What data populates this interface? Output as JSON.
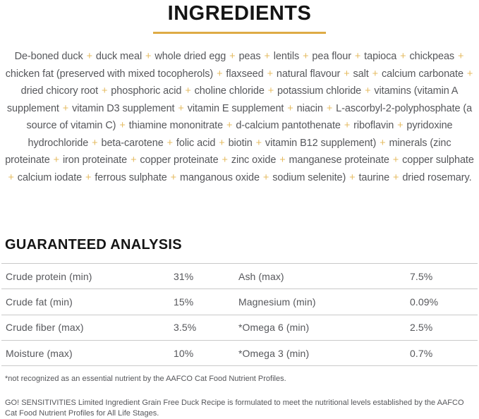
{
  "ingredients": {
    "title": "INGREDIENTS",
    "separator": "+",
    "items": [
      "De-boned duck",
      "duck meal",
      "whole dried egg",
      "peas",
      "lentils",
      "pea flour",
      "tapioca",
      "chickpeas",
      "chicken fat (preserved with mixed tocopherols)",
      "flaxseed",
      "natural flavour",
      "salt",
      "calcium carbonate",
      "dried chicory root",
      "phosphoric acid",
      "choline chloride",
      "potassium chloride",
      "vitamins (vitamin A supplement",
      "vitamin D3 supplement",
      "vitamin E supplement",
      "niacin",
      "L-ascorbyl-2-polyphosphate (a source of vitamin C)",
      "thiamine mononitrate",
      "d-calcium pantothenate",
      "riboflavin",
      "pyridoxine hydrochloride",
      "beta-carotene",
      "folic acid",
      "biotin",
      "vitamin B12 supplement)",
      "minerals (zinc proteinate",
      "iron proteinate",
      "copper proteinate",
      "zinc oxide",
      "manganese proteinate",
      "copper sulphate",
      "calcium iodate",
      "ferrous sulphate",
      "manganous oxide",
      "sodium selenite)",
      "taurine",
      "dried rosemary."
    ]
  },
  "analysis": {
    "title": "GUARANTEED ANALYSIS",
    "rows": [
      {
        "left_label": "Crude protein (min)",
        "left_value": "31%",
        "right_label": "Ash (max)",
        "right_value": "7.5%"
      },
      {
        "left_label": "Crude fat (min)",
        "left_value": "15%",
        "right_label": "Magnesium (min)",
        "right_value": "0.09%"
      },
      {
        "left_label": "Crude fiber (max)",
        "left_value": "3.5%",
        "right_label": "*Omega 6 (min)",
        "right_value": "2.5%"
      },
      {
        "left_label": "Moisture (max)",
        "left_value": "10%",
        "right_label": "*Omega 3 (min)",
        "right_value": "0.7%"
      }
    ],
    "footnote": "*not recognized as an essential nutrient by the AAFCO Cat Food Nutrient Profiles."
  },
  "aafco_statement": "GO! SENSITIVITIES Limited Ingredient Grain Free Duck Recipe is formulated to meet the nutritional levels established by the AAFCO Cat Food Nutrient Profiles for All Life Stages.",
  "colors": {
    "accent_gold_rule": "#DEAB45",
    "accent_gold_plus": "#E5BB60",
    "body_text_gray": "#56575B",
    "heading_black": "#151515",
    "divider_gray": "#C9C9C9"
  }
}
